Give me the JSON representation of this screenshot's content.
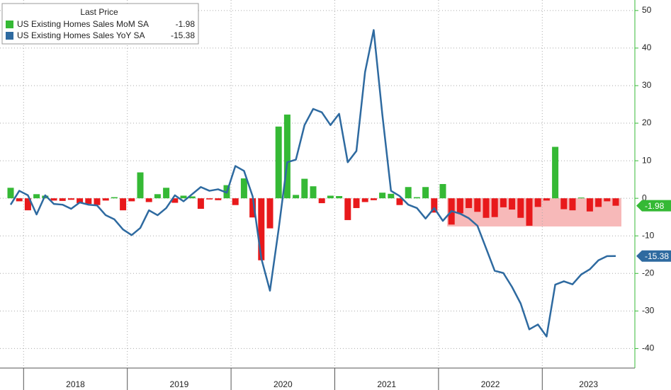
{
  "chart_data": {
    "type": "bar_line",
    "legend_title": "Last Price",
    "years": [
      "2018",
      "2019",
      "2020",
      "2021",
      "2022",
      "2023"
    ],
    "series": [
      {
        "name": "US Existing Homes Sales MoM SA",
        "type": "bar",
        "color": "#35b935",
        "negative_color": "#e8191b",
        "values": [
          2.8,
          -0.8,
          -3.2,
          1.1,
          0.7,
          -0.6,
          -0.7,
          -0.4,
          -1.3,
          -1.5,
          -1.8,
          -0.6,
          0.3,
          -3.2,
          -0.8,
          6.9,
          -1,
          1.1,
          2.8,
          -1.2,
          0.7,
          0.5,
          -2.8,
          -0.3,
          -0.5,
          3.5,
          -1.8,
          5.3,
          -5.1,
          -16.5,
          -8,
          19.1,
          22.3,
          0.9,
          5.2,
          3.2,
          -1.3,
          0.7,
          0.6,
          -5.8,
          -2.6,
          -1,
          -0.5,
          1.5,
          1.2,
          -1.8,
          3,
          0.3,
          3,
          -3.8,
          3.8,
          -7,
          -4,
          -2.6,
          -3.6,
          -5.2,
          -5,
          -2.4,
          -3,
          -5.2,
          -7.3,
          -2.3,
          -0.6,
          13.7,
          -2.9,
          -3.2,
          0.2,
          -3.5,
          -2.3,
          -0.8,
          -1.98
        ]
      },
      {
        "name": "US Existing Homes Sales YoY SA",
        "type": "line",
        "color": "#2e6aa0",
        "values": [
          -1.7,
          2,
          0.8,
          -4.3,
          0.8,
          -1.5,
          -1.7,
          -2.8,
          -1.1,
          -1.7,
          -1.9,
          -4.5,
          -5.6,
          -8.3,
          -9.8,
          -7.9,
          -3.2,
          -4.5,
          -2.6,
          0.8,
          -0.8,
          1.1,
          3,
          2,
          2.4,
          1.5,
          8.6,
          7.3,
          0.5,
          -16,
          -24.6,
          -8.3,
          9.6,
          10.3,
          19.5,
          23.8,
          22.9,
          19.5,
          22.5,
          9.6,
          12.6,
          33.6,
          44.8,
          22.3,
          2,
          0.6,
          -1.7,
          -2.6,
          -5.4,
          -2.6,
          -6,
          -3.4,
          -4.1,
          -5.3,
          -7.3,
          -13.3,
          -19.3,
          -19.9,
          -23.6,
          -28,
          -34.9,
          -33.6,
          -36.8,
          -23,
          -22.1,
          -22.9,
          -20.3,
          -18.9,
          -16.5,
          -15.4,
          -15.38
        ]
      }
    ],
    "shaded_range": [
      -7.5,
      0
    ],
    "shaded_color": "#f7b9b9",
    "ylim": [
      -45.2,
      52.8
    ],
    "yticks": [
      -40,
      -30,
      -20,
      -10,
      0,
      10,
      20,
      30,
      40,
      50
    ],
    "grid": true
  }
}
